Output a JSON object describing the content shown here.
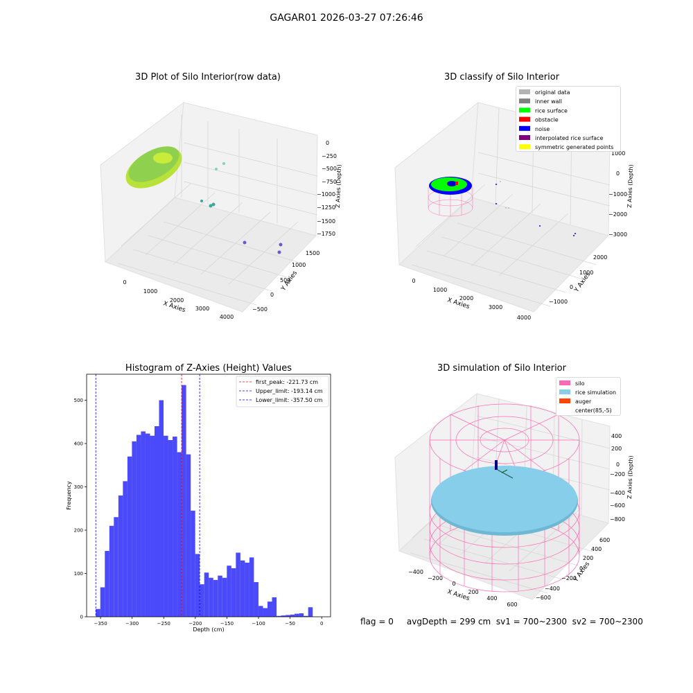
{
  "suptitle": "GAGAR01 2026-03-27 07:26:46",
  "footer": "flag = 0     avgDepth = 299 cm  sv1 = 700~2300  sv2 = 700~2300",
  "colors": {
    "hist_bar": "#4a4afa",
    "first_peak_line": "#ff0000",
    "limit_line": "#0000ff",
    "silo": "#ff69b4",
    "rice_simulation": "#87ceeb",
    "auger": "#ff4500",
    "rice_surface": "#00ff00",
    "noise": "#0000ff",
    "raw_surface": "#9acd32"
  },
  "chart_data": [
    {
      "type": "scatter3d",
      "title": "3D Plot of Silo Interior(row data)",
      "xlabel": "X Axies",
      "ylabel": "Y Axies",
      "zlabel": "Z Axies (Depth)",
      "x_ticks": [
        "0",
        "1000",
        "2000",
        "3000",
        "4000"
      ],
      "y_ticks": [
        "−500",
        "0",
        "500",
        "1000",
        "1500"
      ],
      "z_ticks": [
        "0",
        "−250",
        "−500",
        "−750",
        "−1000",
        "−1250",
        "−1500",
        "−1750"
      ]
    },
    {
      "type": "scatter3d",
      "title": "3D classify of Silo Interior",
      "xlabel": "X Axies",
      "ylabel": "Y Axies",
      "zlabel": "Z Axies (Depth)",
      "x_ticks": [
        "0",
        "1000",
        "2000",
        "3000",
        "4000"
      ],
      "y_ticks": [
        "−1000",
        "0",
        "1000",
        "2000"
      ],
      "z_ticks": [
        "1000",
        "0",
        "−1000",
        "−2000",
        "−3000"
      ],
      "legend": [
        {
          "label": "original data",
          "color": "#b3b3b3"
        },
        {
          "label": "inner wall",
          "color": "#808080"
        },
        {
          "label": "rice surface",
          "color": "#00ff00"
        },
        {
          "label": "obstacle",
          "color": "#ff0000"
        },
        {
          "label": "noise",
          "color": "#0000ff"
        },
        {
          "label": "interpolated rice surface",
          "color": "#800080"
        },
        {
          "label": "symmetric generated points",
          "color": "#ffff00"
        }
      ]
    },
    {
      "type": "bar",
      "title": "Histogram of Z-Axies (Height) Values",
      "xlabel": "Depth (cm)",
      "ylabel": "Frequency",
      "xlim": [
        -372,
        14
      ],
      "ylim": [
        0,
        560
      ],
      "x_ticks": [
        -350,
        -300,
        -250,
        -200,
        -150,
        -100,
        -50,
        0
      ],
      "y_ticks": [
        0,
        100,
        200,
        300,
        400,
        500
      ],
      "bin_start": -357.5,
      "bin_width": 7.15,
      "values": [
        18,
        68,
        152,
        210,
        230,
        280,
        313,
        370,
        405,
        420,
        428,
        423,
        418,
        440,
        500,
        418,
        408,
        416,
        380,
        535,
        375,
        245,
        145,
        75,
        102,
        90,
        85,
        95,
        90,
        118,
        112,
        148,
        130,
        125,
        137,
        80,
        25,
        20,
        35,
        45,
        2,
        3,
        4,
        5,
        7,
        8,
        2,
        22
      ],
      "vlines": [
        {
          "label": "first_peak: -221.73 cm",
          "x": -221.73,
          "color": "#ff0000"
        },
        {
          "label": "Upper_limit: -193.14 cm",
          "x": -193.14,
          "color": "#0000ff"
        },
        {
          "label": "Lower_limit: -357.50 cm",
          "x": -357.5,
          "color": "#0000ff"
        }
      ]
    },
    {
      "type": "surface3d",
      "title": "3D simulation of Silo Interior",
      "xlabel": "X Axies",
      "ylabel": "Y Axies",
      "zlabel": "Z Axies (Depth)",
      "x_ticks": [
        "−400",
        "−200",
        "0",
        "200",
        "400",
        "600"
      ],
      "y_ticks": [
        "−600",
        "−400",
        "−200",
        "0",
        "200",
        "400",
        "600"
      ],
      "z_ticks": [
        "400",
        "200",
        "0",
        "−200",
        "−400",
        "−600",
        "−800"
      ],
      "legend": [
        {
          "label": "silo",
          "color": "#ff69b4"
        },
        {
          "label": "rice simulation",
          "color": "#87ceeb"
        },
        {
          "label": "auger",
          "color": "#ff4500"
        },
        {
          "label": "center(85,-5)",
          "color": ""
        }
      ]
    }
  ]
}
